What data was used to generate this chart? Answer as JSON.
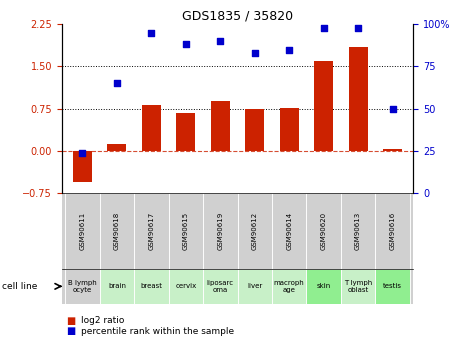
{
  "title": "GDS1835 / 35820",
  "gsm_labels": [
    "GSM90611",
    "GSM90618",
    "GSM90617",
    "GSM90615",
    "GSM90619",
    "GSM90612",
    "GSM90614",
    "GSM90620",
    "GSM90613",
    "GSM90616"
  ],
  "cell_lines": [
    "B lymph\nocyte",
    "brain",
    "breast",
    "cervix",
    "liposarc\noma",
    "liver",
    "macroph\nage",
    "skin",
    "T lymph\noblast",
    "testis"
  ],
  "cell_line_colors": [
    "#d0d0d0",
    "#c8f0c8",
    "#c8f0c8",
    "#c8f0c8",
    "#c8f0c8",
    "#c8f0c8",
    "#c8f0c8",
    "#90ee90",
    "#c8f0c8",
    "#90ee90"
  ],
  "log2_ratio": [
    -0.55,
    0.13,
    0.82,
    0.67,
    0.88,
    0.74,
    0.77,
    1.6,
    1.85,
    0.04
  ],
  "percentile_rank": [
    24,
    65,
    95,
    88,
    90,
    83,
    85,
    98,
    98,
    50
  ],
  "ylim_left": [
    -0.75,
    2.25
  ],
  "ylim_right": [
    0,
    100
  ],
  "yticks_left": [
    -0.75,
    0,
    0.75,
    1.5,
    2.25
  ],
  "yticks_right": [
    0,
    25,
    50,
    75,
    100
  ],
  "hlines_dotted": [
    0.75,
    1.5
  ],
  "hline_dashed": 0,
  "bar_color": "#cc2200",
  "dot_color": "#0000cc",
  "background_color": "#ffffff",
  "legend_red": "log2 ratio",
  "legend_blue": "percentile rank within the sample",
  "cell_line_label": "cell line"
}
